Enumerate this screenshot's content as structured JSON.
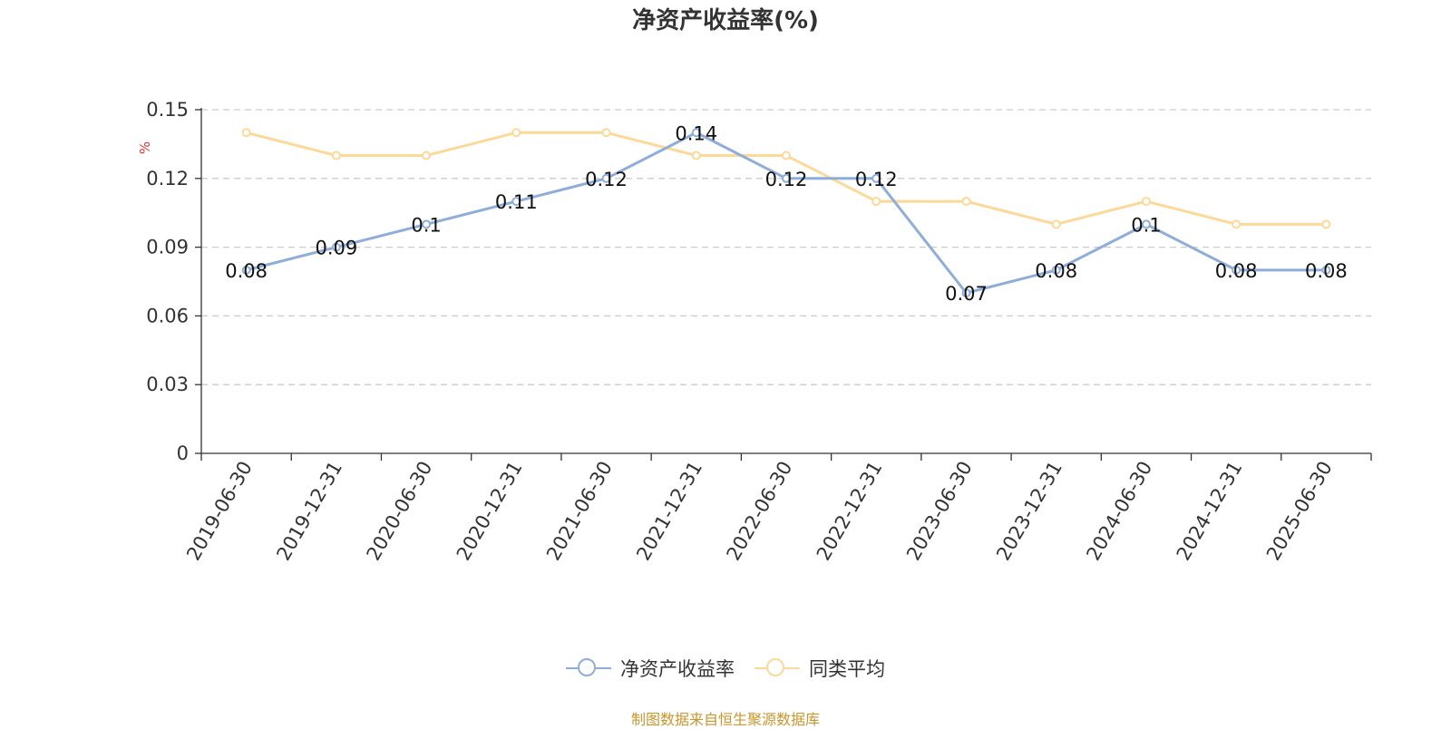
{
  "chart_data": {
    "type": "line",
    "title": "净资产收益率(%)",
    "ylabel": "%",
    "xlabel": "",
    "categories": [
      "2019-06-30",
      "2019-12-31",
      "2020-06-30",
      "2020-12-31",
      "2021-06-30",
      "2021-12-31",
      "2022-06-30",
      "2022-12-31",
      "2023-06-30",
      "2023-12-31",
      "2024-06-30",
      "2024-12-31",
      "2025-06-30"
    ],
    "ylim": [
      0,
      0.15
    ],
    "yticks": [
      "0",
      "0.03",
      "0.06",
      "0.09",
      "0.12",
      "0.15"
    ],
    "ytick_values": [
      0,
      0.03,
      0.06,
      0.09,
      0.12,
      0.15
    ],
    "grid": true,
    "legend_position": "bottom-center",
    "series": [
      {
        "name": "净资产收益率",
        "color": "#8eaed9",
        "values": [
          0.08,
          0.09,
          0.1,
          0.11,
          0.12,
          0.14,
          0.12,
          0.12,
          0.07,
          0.08,
          0.1,
          0.08,
          0.08
        ],
        "labels": [
          "0.08",
          "0.09",
          "0.1",
          "0.11",
          "0.12",
          "0.14",
          "0.12",
          "0.12",
          "0.07",
          "0.08",
          "0.1",
          "0.08",
          "0.08"
        ]
      },
      {
        "name": "同类平均",
        "color": "#fcd998",
        "values": [
          0.14,
          0.13,
          0.13,
          0.14,
          0.14,
          0.13,
          0.13,
          0.11,
          0.11,
          0.1,
          0.11,
          0.1,
          0.1
        ]
      }
    ]
  },
  "source_note": "制图数据来自恒生聚源数据库"
}
